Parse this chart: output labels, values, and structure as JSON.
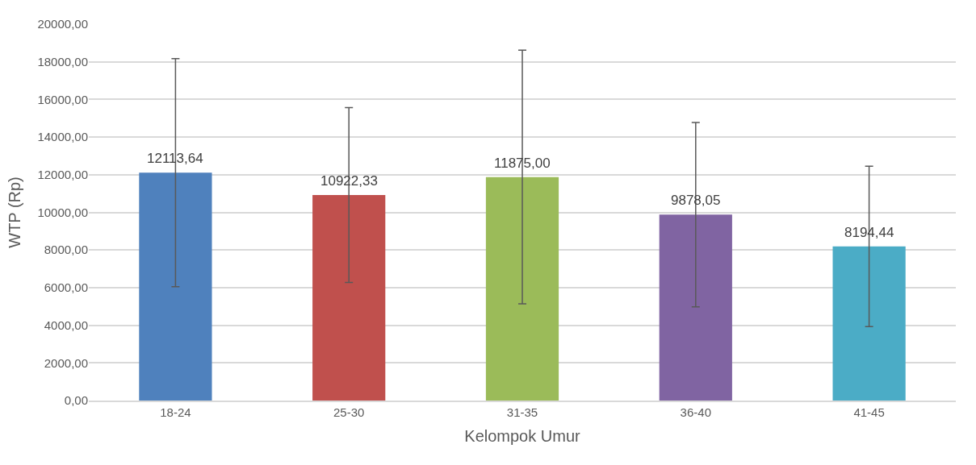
{
  "chart_data": {
    "type": "bar",
    "xlabel": "Kelompok Umur",
    "ylabel": "WTP (Rp)",
    "categories": [
      "18-24",
      "25-30",
      "31-35",
      "36-40",
      "41-45"
    ],
    "values": [
      12113.64,
      10922.33,
      11875.0,
      9878.05,
      8194.44
    ],
    "colors": [
      "#4f81bd",
      "#c0504d",
      "#9bbb59",
      "#8064a2",
      "#4bacc6"
    ],
    "errors": [
      6060,
      4650,
      6740,
      4900,
      4260
    ],
    "value_labels": [
      "12113,64",
      "10922,33",
      "11875,00",
      "9878,05",
      "8194,44"
    ],
    "ylim": [
      0,
      20000
    ],
    "yticks": [
      {
        "value": 0,
        "label": "0,00"
      },
      {
        "value": 2000,
        "label": "2000,00"
      },
      {
        "value": 4000,
        "label": "4000,00"
      },
      {
        "value": 6000,
        "label": "6000,00"
      },
      {
        "value": 8000,
        "label": "8000,00"
      },
      {
        "value": 10000,
        "label": "10000,00"
      },
      {
        "value": 12000,
        "label": "12000,00"
      },
      {
        "value": 14000,
        "label": "14000,00"
      },
      {
        "value": 16000,
        "label": "16000,00"
      },
      {
        "value": 18000,
        "label": "18000,00"
      },
      {
        "value": 20000,
        "label": "20000,00"
      }
    ],
    "grid": "y"
  }
}
